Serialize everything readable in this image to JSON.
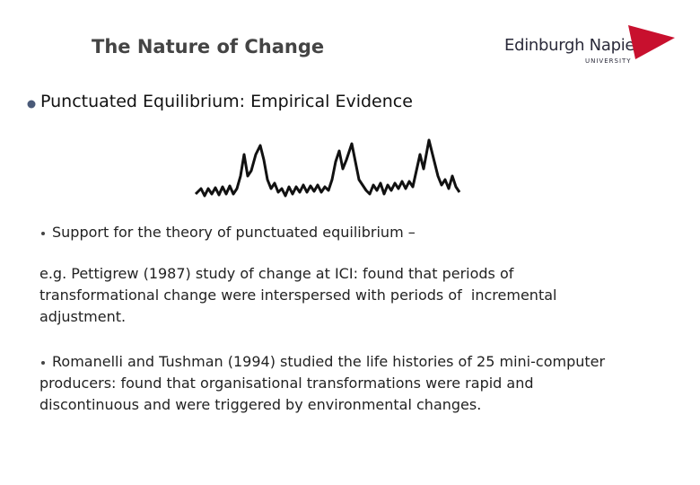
{
  "header": {
    "title": "The Nature of Change",
    "logo": {
      "name": "Edinburgh Napier",
      "subtitle": "UNIVERSITY"
    }
  },
  "heading": "Punctuated Equilibrium: Empirical Evidence",
  "body": [
    {
      "lines": [
        "Support for the theory of punctuated equilibrium –"
      ]
    },
    {
      "lines": [
        "e.g. Pettigrew (1987) study of change at ICI: found that periods of",
        "transformational change were interspersed with periods of  incremental",
        "adjustment."
      ]
    },
    {
      "lines": [
        "Romanelli and Tushman (1994) studied the life histories of 25 mini-computer",
        "producers: found that organisational transformations were rapid and",
        "discontinuous and were triggered by environmental changes."
      ]
    }
  ]
}
